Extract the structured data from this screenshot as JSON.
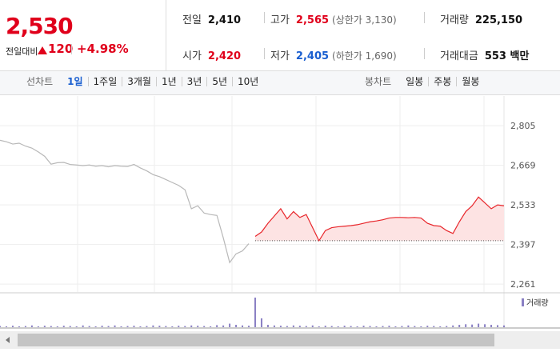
{
  "quote": {
    "price": "2,530",
    "change_label": "전일대비",
    "change": "120",
    "change_pct": "+4.98%"
  },
  "stats": [
    {
      "label": "전일",
      "value": "2,410"
    },
    {
      "label": "고가",
      "value": "2,565",
      "note": "(상한가 3,130)"
    },
    {
      "label": "거래량",
      "value": "225,150"
    },
    {
      "label": "시가",
      "value": "2,420"
    },
    {
      "label": "저가",
      "value": "2,405",
      "note": "(하한가 1,690)"
    },
    {
      "label": "거래대금",
      "value": "553 백만"
    }
  ],
  "line_tabs": {
    "label": "선차트",
    "items": [
      "1일",
      "1주일",
      "3개월",
      "1년",
      "3년",
      "5년",
      "10년"
    ]
  },
  "candle_tabs": {
    "label": "봉차트",
    "items": [
      "일봉",
      "주봉",
      "월봉"
    ]
  },
  "chart_data": {
    "type": "line",
    "ylim": [
      2234,
      2907
    ],
    "yticks": [
      {
        "value": 2261,
        "label": "2,261"
      },
      {
        "value": 2397,
        "label": "2,397"
      },
      {
        "value": 2533,
        "label": "2,533"
      },
      {
        "value": 2669,
        "label": "2,669"
      },
      {
        "value": 2805,
        "label": "2,805"
      }
    ],
    "grid": true,
    "reference_line": 2410,
    "series": [
      {
        "color": "#b8b8b8",
        "values": [
          2755,
          2750,
          2742,
          2745,
          2735,
          2728,
          2715,
          2700,
          2673,
          2678,
          2679,
          2672,
          2670,
          2668,
          2670,
          2666,
          2668,
          2664,
          2668,
          2666,
          2665,
          2672,
          2660,
          2650,
          2637,
          2630,
          2620,
          2610,
          2600,
          2585,
          2520,
          2530,
          2505,
          2500,
          2497,
          2420,
          2335,
          2365,
          2375,
          2400,
          null,
          null,
          null,
          null,
          null,
          null,
          null,
          null,
          null,
          null,
          null,
          null,
          null,
          null,
          null,
          null,
          null,
          null,
          null,
          null,
          null,
          null,
          null,
          null,
          null,
          null,
          null,
          null,
          null,
          null,
          null,
          null,
          null,
          null,
          null,
          null,
          null,
          null,
          null,
          null
        ]
      },
      {
        "color": "#e8262b",
        "fill": "#fde3e3",
        "values": [
          null,
          null,
          null,
          null,
          null,
          null,
          null,
          null,
          null,
          null,
          null,
          null,
          null,
          null,
          null,
          null,
          null,
          null,
          null,
          null,
          null,
          null,
          null,
          null,
          null,
          null,
          null,
          null,
          null,
          null,
          null,
          null,
          null,
          null,
          null,
          null,
          null,
          null,
          null,
          null,
          2425,
          2440,
          2470,
          2495,
          2520,
          2485,
          2510,
          2490,
          2500,
          2455,
          2410,
          2445,
          2455,
          2458,
          2460,
          2462,
          2465,
          2470,
          2475,
          2478,
          2482,
          2488,
          2490,
          2490,
          2489,
          2490,
          2488,
          2470,
          2462,
          2460,
          2445,
          2435,
          2475,
          2510,
          2530,
          2560,
          2540,
          2520,
          2533,
          2530
        ]
      }
    ],
    "volume": {
      "name": "거래량",
      "color": "#8a80c4",
      "ylim": [
        0,
        100
      ],
      "values": [
        4,
        3,
        5,
        3,
        4,
        6,
        3,
        5,
        4,
        3,
        5,
        4,
        3,
        6,
        4,
        3,
        5,
        4,
        6,
        3,
        4,
        5,
        3,
        4,
        6,
        5,
        4,
        3,
        5,
        4,
        6,
        5,
        4,
        3,
        7,
        6,
        12,
        8,
        6,
        5,
        100,
        30,
        8,
        6,
        5,
        4,
        6,
        5,
        4,
        6,
        3,
        5,
        4,
        3,
        5,
        4,
        3,
        5,
        4,
        3,
        4,
        5,
        3,
        4,
        6,
        4,
        3,
        5,
        4,
        3,
        4,
        6,
        8,
        10,
        9,
        12,
        10,
        8,
        7,
        6
      ]
    }
  }
}
